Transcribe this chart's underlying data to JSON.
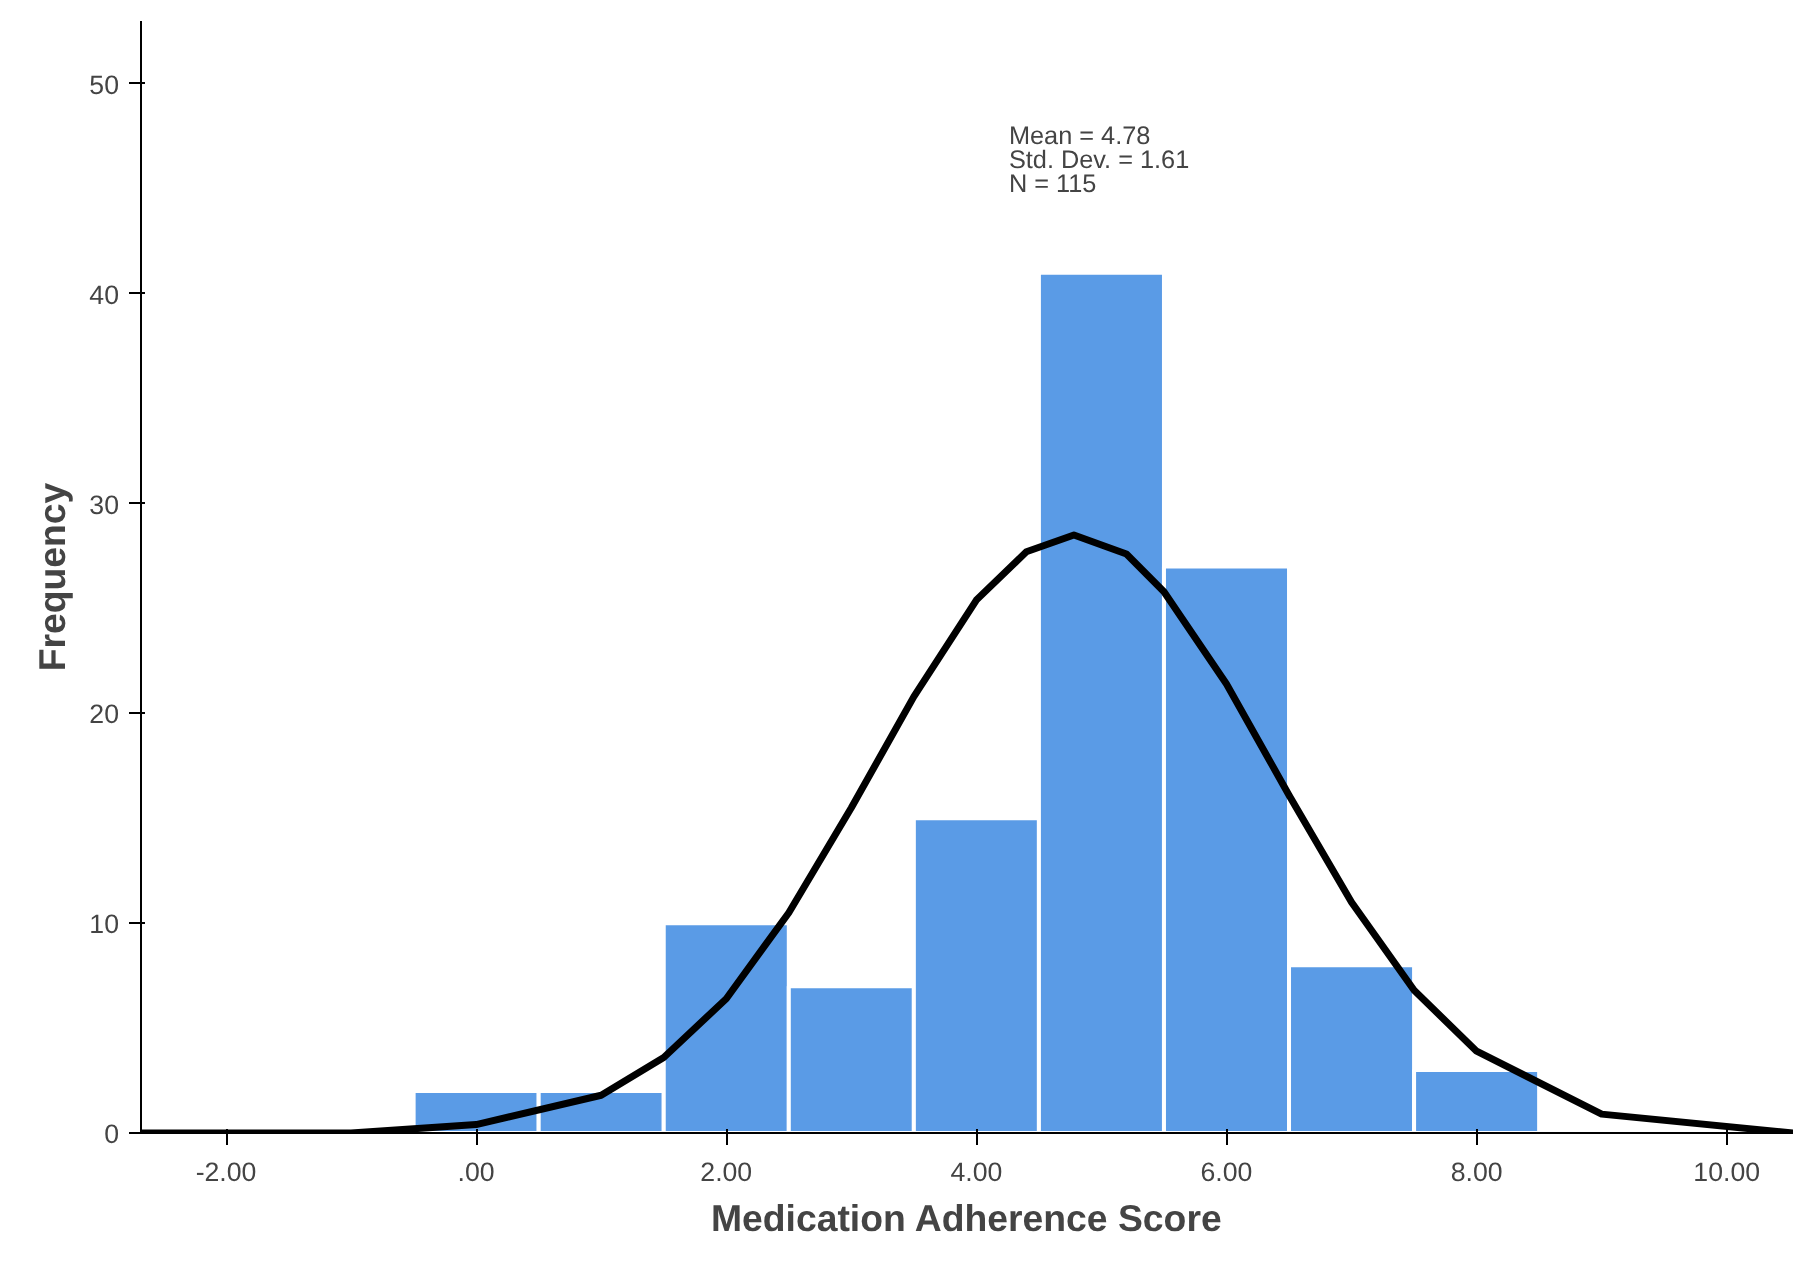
{
  "chart_data": {
    "type": "histogram",
    "xlabel": "Medication Adherence Score",
    "ylabel": "Frequency",
    "xlim": [
      -2.68,
      10.53
    ],
    "ylim": [
      0,
      53
    ],
    "xticks": [
      {
        "value": -2,
        "label": "-2.00"
      },
      {
        "value": 0,
        "label": ".00"
      },
      {
        "value": 2,
        "label": "2.00"
      },
      {
        "value": 4,
        "label": "4.00"
      },
      {
        "value": 6,
        "label": "6.00"
      },
      {
        "value": 8,
        "label": "8.00"
      },
      {
        "value": 10,
        "label": "10.00"
      }
    ],
    "yticks": [
      0,
      10,
      20,
      30,
      40,
      50
    ],
    "grid": false,
    "series": [
      {
        "color": "#5a9be6",
        "bins": [
          -0.5,
          0.5,
          1.5,
          2.5,
          3.5,
          4.5,
          5.5,
          6.5,
          7.5,
          8.5
        ],
        "values": [
          2,
          2,
          10,
          7,
          15,
          41,
          27,
          8,
          3
        ]
      },
      {
        "type": "line",
        "color": "#000000",
        "x": [
          -2.68,
          -1,
          0,
          1,
          1.5,
          2,
          2.5,
          3,
          3.5,
          4,
          4.4,
          4.78,
          5.2,
          5.5,
          6,
          6.5,
          7,
          7.5,
          8,
          9,
          10.53
        ],
        "values": [
          0,
          0,
          0.4,
          1.8,
          3.6,
          6.4,
          10.5,
          15.5,
          20.8,
          25.4,
          27.7,
          28.5,
          27.6,
          25.8,
          21.4,
          16.1,
          11.0,
          6.8,
          3.9,
          0.9,
          0
        ]
      }
    ],
    "annotations": [
      "Mean = 4.78",
      "Std. Dev. = 1.61",
      "N = 115"
    ]
  }
}
